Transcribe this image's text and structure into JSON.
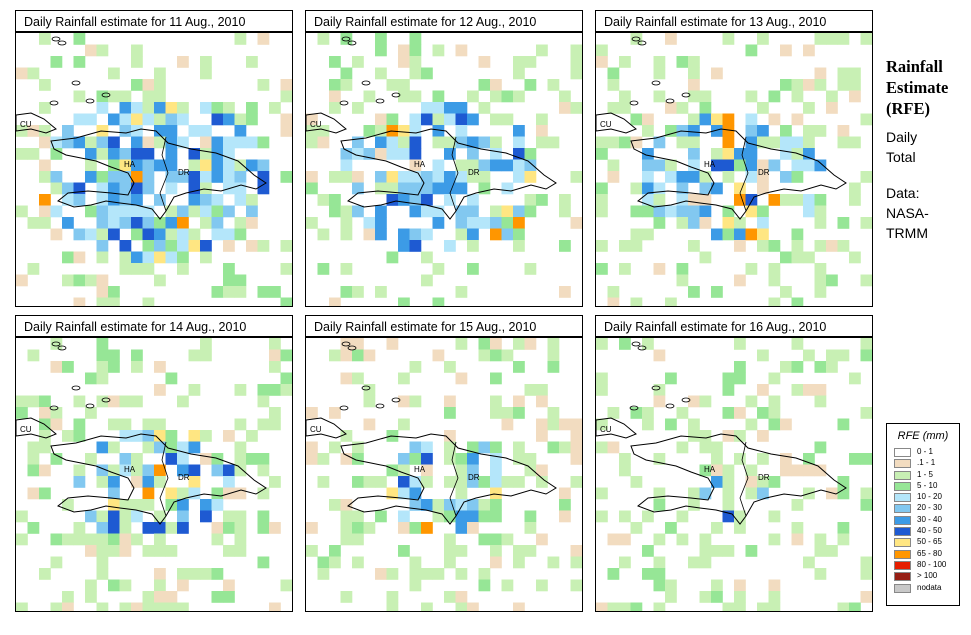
{
  "sidebar": {
    "title_lines": [
      "Rainfall",
      "Estimate",
      "(RFE)"
    ],
    "period_lines": [
      "Daily",
      "Total"
    ],
    "data_lines": [
      "Data:",
      "NASA-",
      "TRMM"
    ]
  },
  "legend": {
    "title": "RFE (mm)",
    "items": [
      {
        "label": "0 - 1",
        "color": "#ffffff"
      },
      {
        "label": ".1 - 1",
        "color": "#f2dcc0"
      },
      {
        "label": "1 - 5",
        "color": "#c8f0b4"
      },
      {
        "label": "5 - 10",
        "color": "#96e696"
      },
      {
        "label": "10 - 20",
        "color": "#b4e6fa"
      },
      {
        "label": "20 - 30",
        "color": "#82c8f0"
      },
      {
        "label": "30 - 40",
        "color": "#3c9be6"
      },
      {
        "label": "40 - 50",
        "color": "#1e5ad2"
      },
      {
        "label": "50 - 65",
        "color": "#ffe682"
      },
      {
        "label": "65 - 80",
        "color": "#ff9600"
      },
      {
        "label": "80 - 100",
        "color": "#e61e00"
      },
      {
        "label": "> 100",
        "color": "#961e14"
      },
      {
        "label": "nodata",
        "color": "#c8c8c8"
      }
    ]
  },
  "map_labels": {
    "cu": "CU",
    "ha": "HA",
    "dr": "DR"
  },
  "panels": [
    {
      "title": "Daily Rainfall estimate for  11 Aug., 2010",
      "seed": 11,
      "intensity": 0.85
    },
    {
      "title": "Daily Rainfall estimate for  12 Aug., 2010",
      "seed": 12,
      "intensity": 0.75
    },
    {
      "title": "Daily Rainfall estimate for  13 Aug., 2010",
      "seed": 13,
      "intensity": 0.65
    },
    {
      "title": "Daily Rainfall estimate for  14 Aug., 2010",
      "seed": 14,
      "intensity": 0.55
    },
    {
      "title": "Daily Rainfall estimate for  15 Aug., 2010",
      "seed": 15,
      "intensity": 0.45
    },
    {
      "title": "Daily Rainfall estimate for  16 Aug., 2010",
      "seed": 16,
      "intensity": 0.25
    }
  ]
}
